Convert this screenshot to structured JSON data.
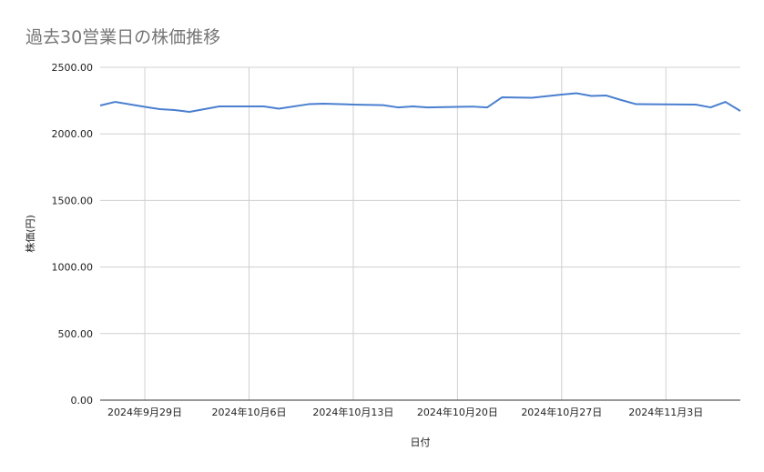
{
  "chart_data": {
    "type": "line",
    "title": "過去30営業日の株価推移",
    "xlabel": "日付",
    "ylabel": "株価(円)",
    "ylim": [
      0,
      2500
    ],
    "xlim": [
      "2024-09-26",
      "2024-11-08"
    ],
    "yticks": [
      0,
      500,
      1000,
      1500,
      2000,
      2500
    ],
    "ytick_labels": [
      "0.00",
      "500.00",
      "1000.00",
      "1500.00",
      "2000.00",
      "2500.00"
    ],
    "xticks": [
      "2024-09-29",
      "2024-10-06",
      "2024-10-13",
      "2024-10-20",
      "2024-10-27",
      "2024-11-03"
    ],
    "xtick_labels": [
      "2024年9月29日",
      "2024年10月6日",
      "2024年10月13日",
      "2024年10月20日",
      "2024年10月27日",
      "2024年11月3日"
    ],
    "grid": true,
    "line_color": "#4a7fcf",
    "series": [
      {
        "points": [
          [
            "2024-09-26",
            2213
          ],
          [
            "2024-09-27",
            2240
          ],
          [
            "2024-09-29",
            2203
          ],
          [
            "2024-09-30",
            2186
          ],
          [
            "2024-10-01",
            2179
          ],
          [
            "2024-10-02",
            2165
          ],
          [
            "2024-10-04",
            2206
          ],
          [
            "2024-10-07",
            2206
          ],
          [
            "2024-10-08",
            2189
          ],
          [
            "2024-10-10",
            2223
          ],
          [
            "2024-10-11",
            2227
          ],
          [
            "2024-10-13",
            2220
          ],
          [
            "2024-10-15",
            2216
          ],
          [
            "2024-10-16",
            2199
          ],
          [
            "2024-10-17",
            2206
          ],
          [
            "2024-10-18",
            2199
          ],
          [
            "2024-10-20",
            2203
          ],
          [
            "2024-10-21",
            2205
          ],
          [
            "2024-10-22",
            2199
          ],
          [
            "2024-10-23",
            2275
          ],
          [
            "2024-10-25",
            2271
          ],
          [
            "2024-10-27",
            2295
          ],
          [
            "2024-10-28",
            2305
          ],
          [
            "2024-10-29",
            2285
          ],
          [
            "2024-10-30",
            2288
          ],
          [
            "2024-10-31",
            2254
          ],
          [
            "2024-11-01",
            2223
          ],
          [
            "2024-11-05",
            2220
          ],
          [
            "2024-11-06",
            2199
          ],
          [
            "2024-11-07",
            2240
          ],
          [
            "2024-11-08",
            2172
          ]
        ]
      }
    ]
  }
}
